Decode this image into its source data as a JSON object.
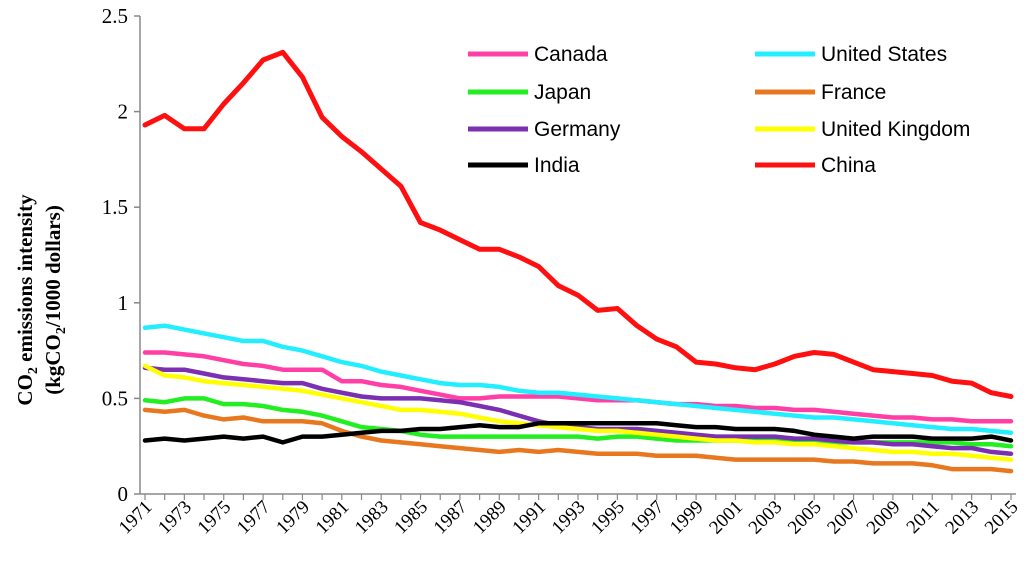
{
  "chart_data": {
    "type": "line",
    "title": "",
    "ylabel_line1": "CO",
    "ylabel_line1_sub": "2",
    "ylabel_line1_rest": " emissions intensity",
    "ylabel_line2": "(kgCO",
    "ylabel_line2_sub": "2",
    "ylabel_line2_rest": "/1000 dollars)",
    "xlabel": "",
    "ylim": [
      0,
      2.5
    ],
    "y_ticks": [
      "0",
      "0.5",
      "1",
      "1.5",
      "2",
      "2.5"
    ],
    "x_ticks": [
      "1971",
      "1973",
      "1975",
      "1977",
      "1979",
      "1981",
      "1983",
      "1985",
      "1987",
      "1989",
      "1991",
      "1993",
      "1995",
      "1997",
      "1999",
      "2001",
      "2003",
      "2005",
      "2007",
      "2009",
      "2011",
      "2013",
      "2015"
    ],
    "x": [
      1971,
      1972,
      1973,
      1974,
      1975,
      1976,
      1977,
      1978,
      1979,
      1980,
      1981,
      1982,
      1983,
      1984,
      1985,
      1986,
      1987,
      1988,
      1989,
      1990,
      1991,
      1992,
      1993,
      1994,
      1995,
      1996,
      1997,
      1998,
      1999,
      2000,
      2001,
      2002,
      2003,
      2004,
      2005,
      2006,
      2007,
      2008,
      2009,
      2010,
      2011,
      2012,
      2013,
      2014,
      2015
    ],
    "legend_position": "top-right",
    "grid": false,
    "series": [
      {
        "name": "Canada",
        "color": "#ff3fa6",
        "values": [
          0.74,
          0.74,
          0.73,
          0.72,
          0.7,
          0.68,
          0.67,
          0.65,
          0.65,
          0.65,
          0.59,
          0.59,
          0.57,
          0.56,
          0.54,
          0.52,
          0.5,
          0.5,
          0.51,
          0.51,
          0.51,
          0.51,
          0.5,
          0.49,
          0.49,
          0.49,
          0.48,
          0.47,
          0.47,
          0.46,
          0.46,
          0.45,
          0.45,
          0.44,
          0.44,
          0.43,
          0.42,
          0.41,
          0.4,
          0.4,
          0.39,
          0.39,
          0.38,
          0.38,
          0.38
        ]
      },
      {
        "name": "United States",
        "color": "#22eeff",
        "values": [
          0.87,
          0.88,
          0.86,
          0.84,
          0.82,
          0.8,
          0.8,
          0.77,
          0.75,
          0.72,
          0.69,
          0.67,
          0.64,
          0.62,
          0.6,
          0.58,
          0.57,
          0.57,
          0.56,
          0.54,
          0.53,
          0.53,
          0.52,
          0.51,
          0.5,
          0.49,
          0.48,
          0.47,
          0.46,
          0.45,
          0.44,
          0.43,
          0.42,
          0.41,
          0.4,
          0.4,
          0.39,
          0.38,
          0.37,
          0.36,
          0.35,
          0.34,
          0.34,
          0.33,
          0.32
        ]
      },
      {
        "name": "Japan",
        "color": "#22ee22",
        "values": [
          0.49,
          0.48,
          0.5,
          0.5,
          0.47,
          0.47,
          0.46,
          0.44,
          0.43,
          0.41,
          0.38,
          0.35,
          0.34,
          0.33,
          0.31,
          0.3,
          0.3,
          0.3,
          0.3,
          0.3,
          0.3,
          0.3,
          0.3,
          0.29,
          0.3,
          0.3,
          0.29,
          0.28,
          0.28,
          0.28,
          0.28,
          0.28,
          0.28,
          0.28,
          0.28,
          0.27,
          0.27,
          0.27,
          0.27,
          0.27,
          0.27,
          0.27,
          0.26,
          0.26,
          0.25
        ]
      },
      {
        "name": "France",
        "color": "#e87820",
        "values": [
          0.44,
          0.43,
          0.44,
          0.41,
          0.39,
          0.4,
          0.38,
          0.38,
          0.38,
          0.37,
          0.33,
          0.3,
          0.28,
          0.27,
          0.26,
          0.25,
          0.24,
          0.23,
          0.22,
          0.23,
          0.22,
          0.23,
          0.22,
          0.21,
          0.21,
          0.21,
          0.2,
          0.2,
          0.2,
          0.19,
          0.18,
          0.18,
          0.18,
          0.18,
          0.18,
          0.17,
          0.17,
          0.16,
          0.16,
          0.16,
          0.15,
          0.13,
          0.13,
          0.13,
          0.12
        ]
      },
      {
        "name": "Germany",
        "color": "#7a30b0",
        "values": [
          0.66,
          0.65,
          0.65,
          0.63,
          0.61,
          0.6,
          0.59,
          0.58,
          0.58,
          0.55,
          0.53,
          0.51,
          0.5,
          0.5,
          0.5,
          0.49,
          0.48,
          0.46,
          0.44,
          0.41,
          0.38,
          0.36,
          0.35,
          0.34,
          0.34,
          0.34,
          0.33,
          0.32,
          0.31,
          0.3,
          0.3,
          0.3,
          0.3,
          0.29,
          0.29,
          0.28,
          0.27,
          0.27,
          0.26,
          0.26,
          0.25,
          0.24,
          0.24,
          0.22,
          0.21
        ]
      },
      {
        "name": "United Kingdom",
        "color": "#ffff00",
        "values": [
          0.67,
          0.62,
          0.61,
          0.59,
          0.58,
          0.57,
          0.56,
          0.55,
          0.54,
          0.52,
          0.5,
          0.48,
          0.46,
          0.44,
          0.44,
          0.43,
          0.42,
          0.4,
          0.38,
          0.37,
          0.36,
          0.35,
          0.34,
          0.33,
          0.33,
          0.32,
          0.31,
          0.3,
          0.29,
          0.28,
          0.28,
          0.27,
          0.27,
          0.26,
          0.26,
          0.25,
          0.24,
          0.23,
          0.22,
          0.22,
          0.21,
          0.21,
          0.2,
          0.19,
          0.18
        ]
      },
      {
        "name": "India",
        "color": "#000000",
        "values": [
          0.28,
          0.29,
          0.28,
          0.29,
          0.3,
          0.29,
          0.3,
          0.27,
          0.3,
          0.3,
          0.31,
          0.32,
          0.33,
          0.33,
          0.34,
          0.34,
          0.35,
          0.36,
          0.35,
          0.35,
          0.37,
          0.37,
          0.37,
          0.37,
          0.37,
          0.37,
          0.37,
          0.36,
          0.35,
          0.35,
          0.34,
          0.34,
          0.34,
          0.33,
          0.31,
          0.3,
          0.29,
          0.3,
          0.3,
          0.3,
          0.29,
          0.29,
          0.29,
          0.3,
          0.28
        ]
      },
      {
        "name": "China",
        "color": "#ff1010",
        "values": [
          1.93,
          1.98,
          1.91,
          1.91,
          2.04,
          2.15,
          2.27,
          2.31,
          2.18,
          1.97,
          1.87,
          1.79,
          1.7,
          1.61,
          1.42,
          1.38,
          1.33,
          1.28,
          1.28,
          1.24,
          1.19,
          1.09,
          1.04,
          0.96,
          0.97,
          0.88,
          0.81,
          0.77,
          0.69,
          0.68,
          0.66,
          0.65,
          0.68,
          0.72,
          0.74,
          0.73,
          0.69,
          0.65,
          0.64,
          0.63,
          0.62,
          0.59,
          0.58,
          0.53,
          0.51
        ]
      }
    ]
  }
}
